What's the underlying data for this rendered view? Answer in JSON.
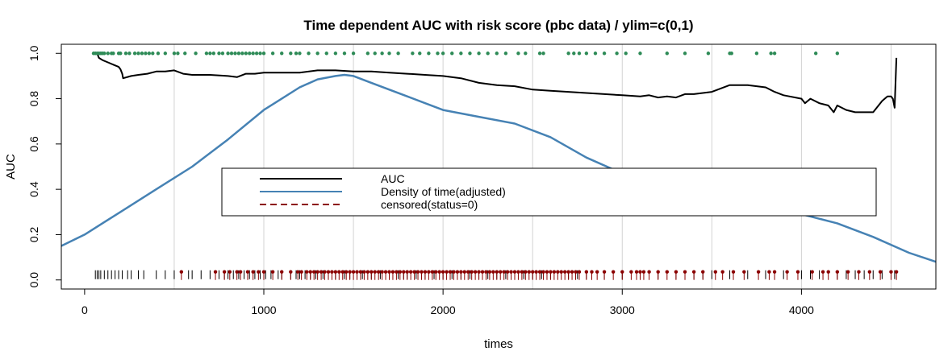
{
  "chart_data": {
    "type": "line",
    "title": "Time dependent AUC with risk score (pbc data) / ylim=c(0,1)",
    "xlabel": "times",
    "ylabel": "AUC",
    "xlim": [
      -130,
      4750
    ],
    "ylim": [
      -0.04,
      1.04
    ],
    "x_ticks": [
      0,
      1000,
      2000,
      3000,
      4000
    ],
    "y_ticks": [
      0.0,
      0.2,
      0.4,
      0.6,
      0.8,
      1.0
    ],
    "x_tick_labels": [
      "0",
      "1000",
      "2000",
      "3000",
      "4000"
    ],
    "y_tick_labels": [
      "0.0",
      "0.2",
      "0.4",
      "0.6",
      "0.8",
      "1.0"
    ],
    "vertical_grid": [
      500,
      1000,
      1500,
      2000,
      2500,
      3000,
      3500,
      4000,
      4500
    ],
    "legend": {
      "placement": "center",
      "entries": [
        {
          "label": "AUC",
          "color": "#000000",
          "style": "solid"
        },
        {
          "label": "Density of time(adjusted)",
          "color": "#4682b4",
          "style": "solid"
        },
        {
          "label": "censored(status=0)",
          "color": "#8b0000",
          "style": "dashed"
        }
      ]
    },
    "series": [
      {
        "color": "#000000",
        "x": [
          70,
          80,
          100,
          130,
          160,
          190,
          200,
          210,
          215,
          260,
          300,
          350,
          400,
          450,
          500,
          550,
          600,
          700,
          800,
          850,
          900,
          950,
          1000,
          1100,
          1200,
          1300,
          1400,
          1500,
          1600,
          1700,
          1800,
          1900,
          2000,
          2100,
          2200,
          2300,
          2400,
          2500,
          2600,
          2700,
          2800,
          2900,
          3000,
          3100,
          3150,
          3200,
          3250,
          3300,
          3350,
          3400,
          3500,
          3600,
          3700,
          3800,
          3850,
          3900,
          4000,
          4020,
          4050,
          4100,
          4150,
          4180,
          4200,
          4250,
          4300,
          4400,
          4450,
          4480,
          4500,
          4510,
          4520,
          4530
        ],
        "y": [
          1.0,
          0.98,
          0.97,
          0.96,
          0.95,
          0.94,
          0.93,
          0.91,
          0.89,
          0.9,
          0.905,
          0.91,
          0.92,
          0.92,
          0.925,
          0.91,
          0.905,
          0.905,
          0.9,
          0.895,
          0.91,
          0.91,
          0.915,
          0.915,
          0.915,
          0.925,
          0.925,
          0.92,
          0.92,
          0.915,
          0.91,
          0.905,
          0.9,
          0.89,
          0.87,
          0.86,
          0.855,
          0.84,
          0.835,
          0.83,
          0.825,
          0.82,
          0.815,
          0.81,
          0.815,
          0.805,
          0.81,
          0.805,
          0.82,
          0.82,
          0.83,
          0.86,
          0.86,
          0.85,
          0.83,
          0.815,
          0.8,
          0.78,
          0.8,
          0.78,
          0.77,
          0.74,
          0.77,
          0.75,
          0.74,
          0.74,
          0.79,
          0.81,
          0.81,
          0.8,
          0.76,
          0.98
        ]
      },
      {
        "color": "#4682b4",
        "x": [
          -130,
          0,
          200,
          400,
          600,
          800,
          1000,
          1200,
          1300,
          1400,
          1450,
          1500,
          1600,
          1800,
          2000,
          2200,
          2400,
          2600,
          2800,
          3000,
          3200,
          3400,
          3600,
          3800,
          4000,
          4200,
          4400,
          4600,
          4750
        ],
        "y": [
          0.15,
          0.2,
          0.3,
          0.4,
          0.5,
          0.62,
          0.75,
          0.85,
          0.885,
          0.9,
          0.905,
          0.9,
          0.87,
          0.81,
          0.75,
          0.72,
          0.69,
          0.63,
          0.54,
          0.47,
          0.42,
          0.38,
          0.34,
          0.32,
          0.29,
          0.25,
          0.19,
          0.12,
          0.08
        ]
      }
    ],
    "event_times": [
      60,
      70,
      80,
      90,
      110,
      130,
      150,
      170,
      190,
      210,
      240,
      260,
      300,
      330,
      400,
      450,
      500,
      580,
      600,
      650,
      700,
      750,
      780,
      800,
      830,
      860,
      890,
      920,
      950,
      980,
      1010,
      1040,
      1080,
      1100,
      1150,
      1180,
      1200,
      1230,
      1260,
      1290,
      1330,
      1360,
      1400,
      1450,
      1480,
      1520,
      1550,
      1600,
      1650,
      1700,
      1750,
      1780,
      1800,
      1850,
      1900,
      1950,
      2000,
      2050,
      2100,
      2150,
      2200,
      2250,
      2300,
      2350,
      2400,
      2450,
      2500,
      2550,
      2600,
      2700,
      2750,
      2800,
      2900,
      3000,
      3100,
      3200,
      3300,
      3400,
      3450,
      3500,
      3600,
      3700,
      3800,
      3900,
      4000,
      4050,
      4100,
      4200,
      4250,
      4300,
      4350,
      4400,
      4450,
      4500,
      4520
    ],
    "event_points_at_1": [
      50,
      60,
      70,
      80,
      90,
      100,
      110,
      130,
      150,
      160,
      190,
      200,
      230,
      250,
      280,
      300,
      320,
      340,
      360,
      380,
      410,
      450,
      500,
      520,
      560,
      620,
      680,
      700,
      720,
      750,
      770,
      800,
      820,
      840,
      860,
      880,
      900,
      920,
      940,
      960,
      980,
      1000,
      1050,
      1100,
      1150,
      1180,
      1200,
      1250,
      1300,
      1350,
      1400,
      1450,
      1500,
      1580,
      1620,
      1660,
      1700,
      1750,
      1830,
      1870,
      1920,
      1970,
      2000,
      2050,
      2100,
      2150,
      2200,
      2250,
      2300,
      2350,
      2420,
      2460,
      2540,
      2560,
      2700,
      2730,
      2760,
      2800,
      2850,
      2900,
      2970,
      3020,
      3100,
      3250,
      3350,
      3480,
      3600,
      3610,
      3750,
      3830,
      3850,
      4080,
      4200
    ],
    "censored_times": [
      540,
      730,
      780,
      810,
      850,
      870,
      910,
      940,
      970,
      1000,
      1050,
      1100,
      1150,
      1190,
      1210,
      1240,
      1260,
      1280,
      1300,
      1320,
      1340,
      1360,
      1380,
      1400,
      1420,
      1440,
      1460,
      1480,
      1500,
      1520,
      1540,
      1560,
      1580,
      1600,
      1620,
      1640,
      1660,
      1680,
      1700,
      1720,
      1740,
      1760,
      1780,
      1800,
      1820,
      1840,
      1860,
      1880,
      1900,
      1920,
      1940,
      1960,
      1980,
      2000,
      2020,
      2040,
      2060,
      2080,
      2100,
      2120,
      2140,
      2160,
      2180,
      2200,
      2220,
      2240,
      2260,
      2280,
      2300,
      2320,
      2340,
      2360,
      2380,
      2400,
      2420,
      2440,
      2460,
      2480,
      2500,
      2520,
      2540,
      2560,
      2580,
      2600,
      2620,
      2640,
      2660,
      2680,
      2700,
      2720,
      2740,
      2760,
      2800,
      2830,
      2860,
      2900,
      2950,
      3000,
      3050,
      3080,
      3100,
      3120,
      3150,
      3200,
      3250,
      3300,
      3350,
      3400,
      3450,
      3520,
      3560,
      3620,
      3680,
      3760,
      3820,
      3850,
      3920,
      3980,
      4060,
      4120,
      4150,
      4200,
      4260,
      4320,
      4380,
      4440,
      4500,
      4530
    ]
  }
}
